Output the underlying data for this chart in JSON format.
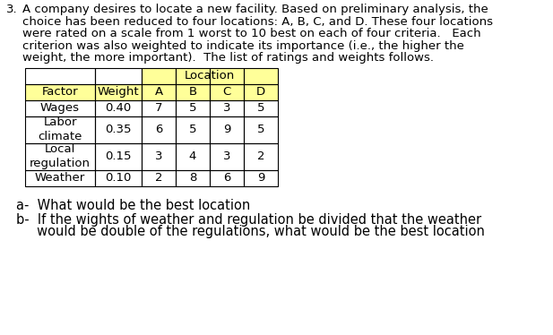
{
  "problem_number": "3.",
  "intro_lines": [
    "A company desires to locate a new facility. Based on preliminary analysis, the",
    "choice has been reduced to four locations: A, B, C, and D. These four locations",
    "were rated on a scale from 1 worst to 10 best on each of four criteria.   Each",
    "criterion was also weighted to indicate its importance (i.e., the higher the",
    "weight, the more important).  The list of ratings and weights follows."
  ],
  "table_header_main": "Location",
  "col_headers": [
    "Factor",
    "Weight",
    "A",
    "B",
    "C",
    "D"
  ],
  "row_data": [
    [
      "Wages",
      "0.40",
      "7",
      "5",
      "3",
      "5"
    ],
    [
      "Labor\nclimate",
      "0.35",
      "6",
      "5",
      "9",
      "5"
    ],
    [
      "Local\nregulation",
      "0.15",
      "3",
      "4",
      "3",
      "2"
    ],
    [
      "Weather",
      "0.10",
      "2",
      "8",
      "6",
      "9"
    ]
  ],
  "header_bg_color": "#FFFF99",
  "question_a": "a-  What would be the best location",
  "question_b": "b-  If the wights of weather and regulation be divided that the weather",
  "question_b2": "     would be double of the regulations, what would be the best location",
  "text_color": "#000000",
  "bg_color": "#ffffff",
  "font_size_intro": 9.5,
  "font_size_table": 9.5,
  "font_size_questions": 10.5
}
